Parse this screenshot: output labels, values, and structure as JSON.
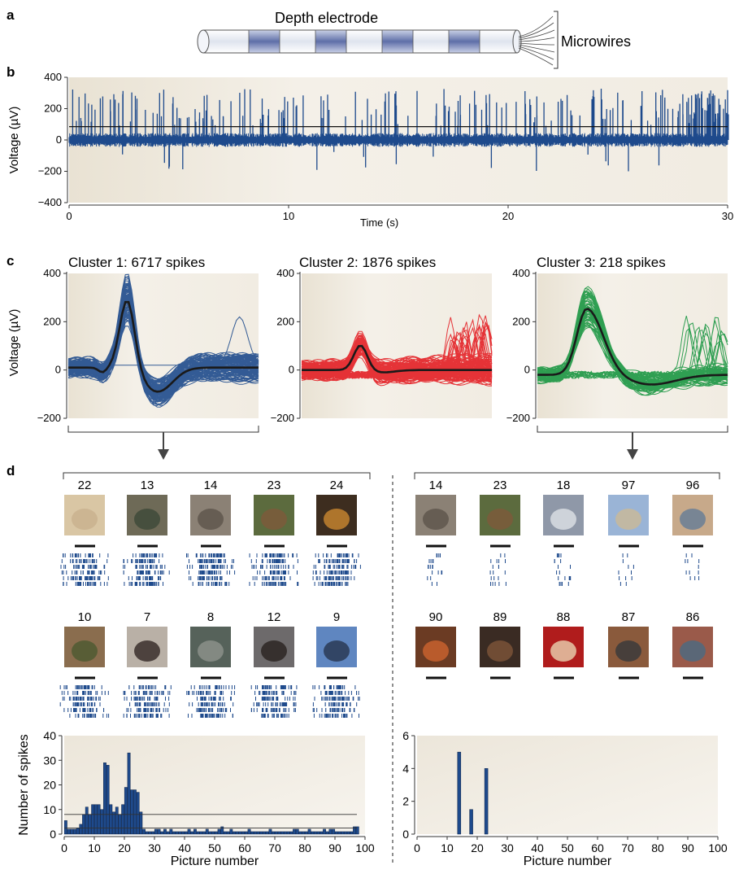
{
  "panels": {
    "a": {
      "letter": "a",
      "electrode_label": "Depth electrode",
      "microwires_label": "Microwires"
    },
    "b": {
      "letter": "b",
      "ylabel": "Voltage (µV)",
      "xlabel": "Time (s)",
      "x_ticks": [
        "0",
        "10",
        "20",
        "30"
      ],
      "y_ticks": [
        "400",
        "200",
        "0",
        "−200",
        "−400"
      ],
      "threshold_uV": 85
    },
    "c": {
      "letter": "c",
      "ylabel": "Voltage (µV)",
      "y_ticks": [
        "400",
        "200",
        "0",
        "−200"
      ]
    },
    "d": {
      "letter": "d",
      "cluster1_row1": [
        "22",
        "13",
        "14",
        "23",
        "24"
      ],
      "cluster1_row2": [
        "10",
        "7",
        "8",
        "12",
        "9"
      ],
      "cluster3_row1": [
        "14",
        "23",
        "18",
        "97",
        "96"
      ],
      "cluster3_row2": [
        "90",
        "89",
        "88",
        "87",
        "86"
      ]
    }
  },
  "chart_data": [
    {
      "type": "line",
      "id": "raw-trace",
      "xlabel": "Time (s)",
      "ylabel": "Voltage (µV)",
      "xlim": [
        0,
        30
      ],
      "ylim": [
        -400,
        400
      ],
      "threshold": 85,
      "series_color": "#1e4a8c"
    },
    {
      "type": "line",
      "id": "cluster-1",
      "title": "Cluster 1: 6717 spikes",
      "ylim": [
        -200,
        400
      ],
      "mean_peak": 290,
      "mean_trough": -100,
      "color": "#1e4a8c"
    },
    {
      "type": "line",
      "id": "cluster-2",
      "title": "Cluster 2: 1876 spikes",
      "ylim": [
        -200,
        400
      ],
      "mean_peak": 105,
      "mean_trough": -10,
      "color": "#e31e24"
    },
    {
      "type": "line",
      "id": "cluster-3",
      "title": "Cluster 3: 218 spikes",
      "ylim": [
        -200,
        400
      ],
      "mean_peak": 255,
      "mean_trough": -40,
      "color": "#1a9641"
    },
    {
      "type": "bar",
      "id": "hist-cluster-1",
      "xlabel": "Picture number",
      "ylabel": "Number of spikes",
      "xlim": [
        0,
        100
      ],
      "ylim": [
        0,
        40
      ],
      "x_ticks": [
        "0",
        "10",
        "20",
        "30",
        "40",
        "50",
        "60",
        "70",
        "80",
        "90",
        "100"
      ],
      "y_ticks": [
        "0",
        "10",
        "20",
        "30",
        "40"
      ],
      "threshold_lines": [
        8,
        2.5
      ],
      "values": [
        5.5,
        2,
        2,
        2,
        2.5,
        4,
        8,
        11,
        8,
        12,
        12,
        12,
        10,
        29,
        28,
        12,
        9,
        11,
        8,
        12,
        19,
        33,
        18,
        18,
        17,
        9,
        2,
        1,
        1,
        1,
        2,
        2,
        1,
        2,
        1,
        2,
        1,
        1,
        1,
        1,
        1,
        2,
        1,
        2,
        1,
        1,
        1,
        2,
        1,
        1,
        1,
        2,
        3,
        1,
        1,
        2,
        1,
        1,
        1,
        1,
        1,
        2,
        1,
        1,
        1,
        1,
        1,
        1,
        2,
        1,
        1,
        1,
        1,
        1,
        1,
        1,
        2,
        2,
        1,
        1,
        1,
        2,
        1,
        1,
        1,
        1,
        2,
        1,
        2,
        2,
        1,
        1,
        1,
        1,
        1,
        1,
        3,
        3
      ],
      "color": "#1e4a8c"
    },
    {
      "type": "bar",
      "id": "hist-cluster-3",
      "xlabel": "Picture number",
      "ylabel": "",
      "xlim": [
        0,
        100
      ],
      "ylim": [
        0,
        6
      ],
      "x_ticks": [
        "0",
        "10",
        "20",
        "30",
        "40",
        "50",
        "60",
        "70",
        "80",
        "90",
        "100"
      ],
      "y_ticks": [
        "0",
        "2",
        "4",
        "6"
      ],
      "bars": [
        {
          "x": 14,
          "value": 5
        },
        {
          "x": 18,
          "value": 1.5
        },
        {
          "x": 23,
          "value": 4
        }
      ],
      "color": "#1e4a8c"
    }
  ]
}
